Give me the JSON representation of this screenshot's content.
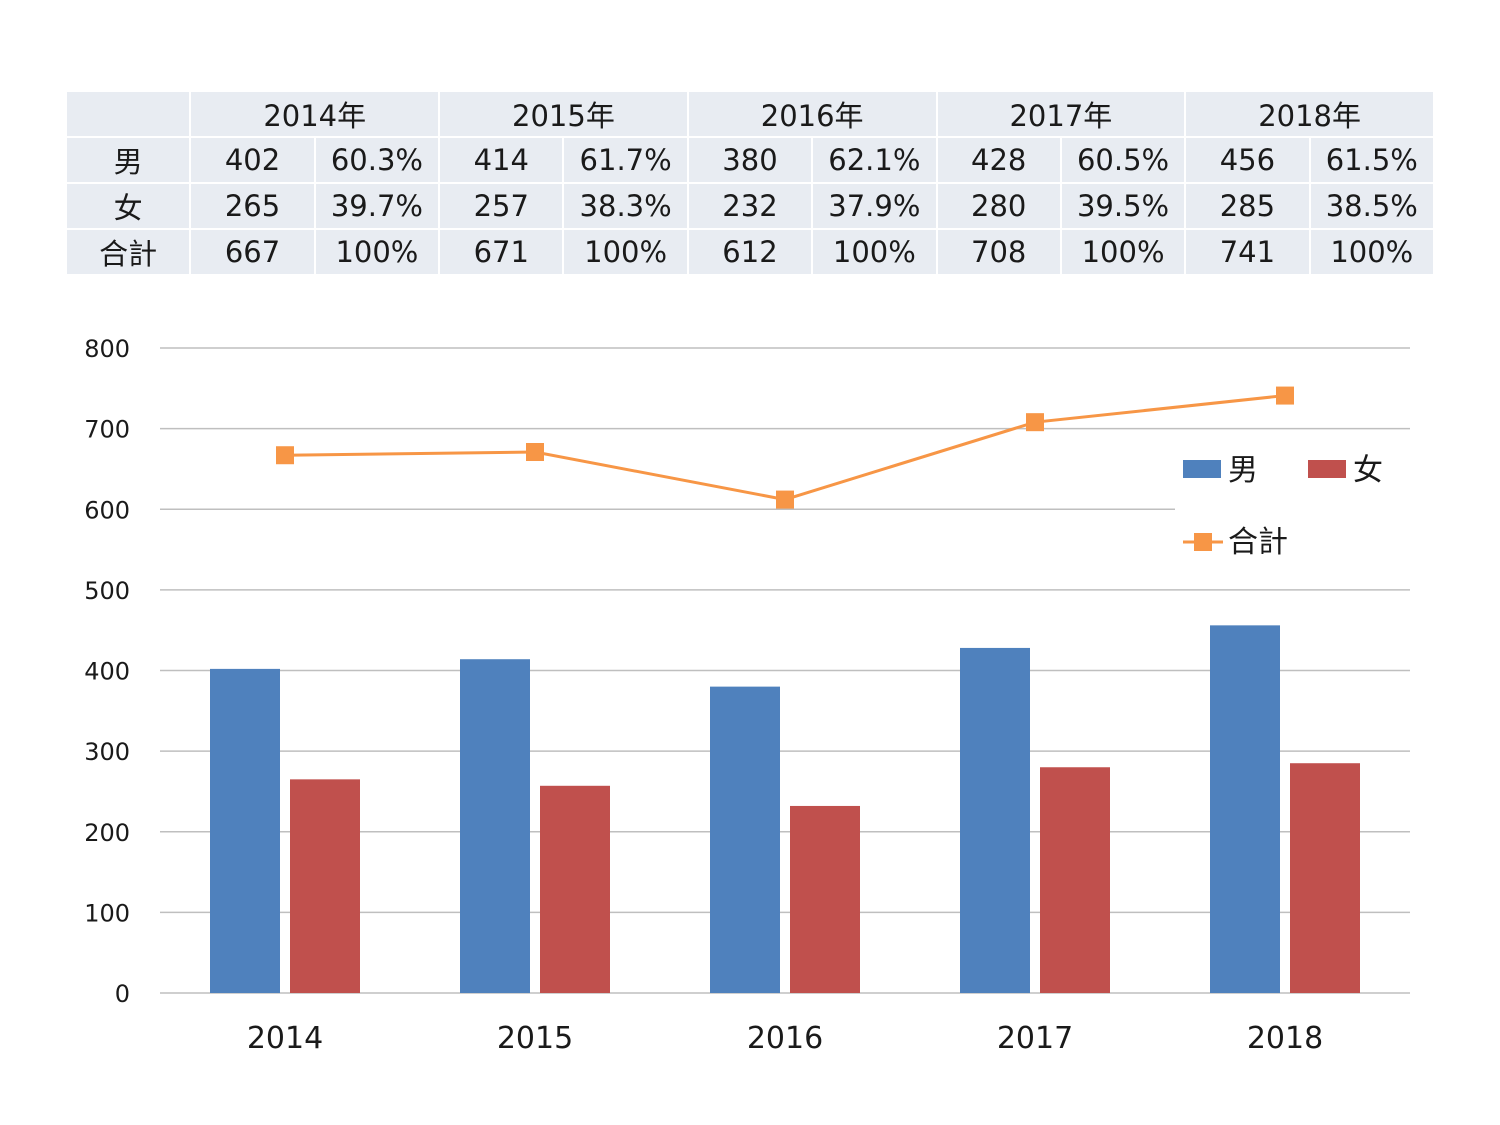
{
  "table": {
    "years": [
      "2014年",
      "2015年",
      "2016年",
      "2017年",
      "2018年"
    ],
    "rows": [
      {
        "label": "男",
        "cells": [
          "402",
          "60.3%",
          "414",
          "61.7%",
          "380",
          "62.1%",
          "428",
          "60.5%",
          "456",
          "61.5%"
        ]
      },
      {
        "label": "女",
        "cells": [
          "265",
          "39.7%",
          "257",
          "38.3%",
          "232",
          "37.9%",
          "280",
          "39.5%",
          "285",
          "38.5%"
        ]
      },
      {
        "label": "合計",
        "cells": [
          "667",
          "100%",
          "671",
          "100%",
          "612",
          "100%",
          "708",
          "100%",
          "741",
          "100%"
        ]
      }
    ]
  },
  "chart_data": {
    "type": "bar",
    "categories": [
      "2014",
      "2015",
      "2016",
      "2017",
      "2018"
    ],
    "series": [
      {
        "name": "男",
        "type": "bar",
        "values": [
          402,
          414,
          380,
          428,
          456
        ],
        "color": "#4f81bd"
      },
      {
        "name": "女",
        "type": "bar",
        "values": [
          265,
          257,
          232,
          280,
          285
        ],
        "color": "#c0504d"
      },
      {
        "name": "合計",
        "type": "line",
        "values": [
          667,
          671,
          612,
          708,
          741
        ],
        "color": "#f79646",
        "marker": "square"
      }
    ],
    "ylim": [
      0,
      800
    ],
    "yticks": [
      0,
      100,
      200,
      300,
      400,
      500,
      600,
      700,
      800
    ],
    "grid": true,
    "legend_position": "right",
    "gridline_color": "#bfbfbf"
  }
}
